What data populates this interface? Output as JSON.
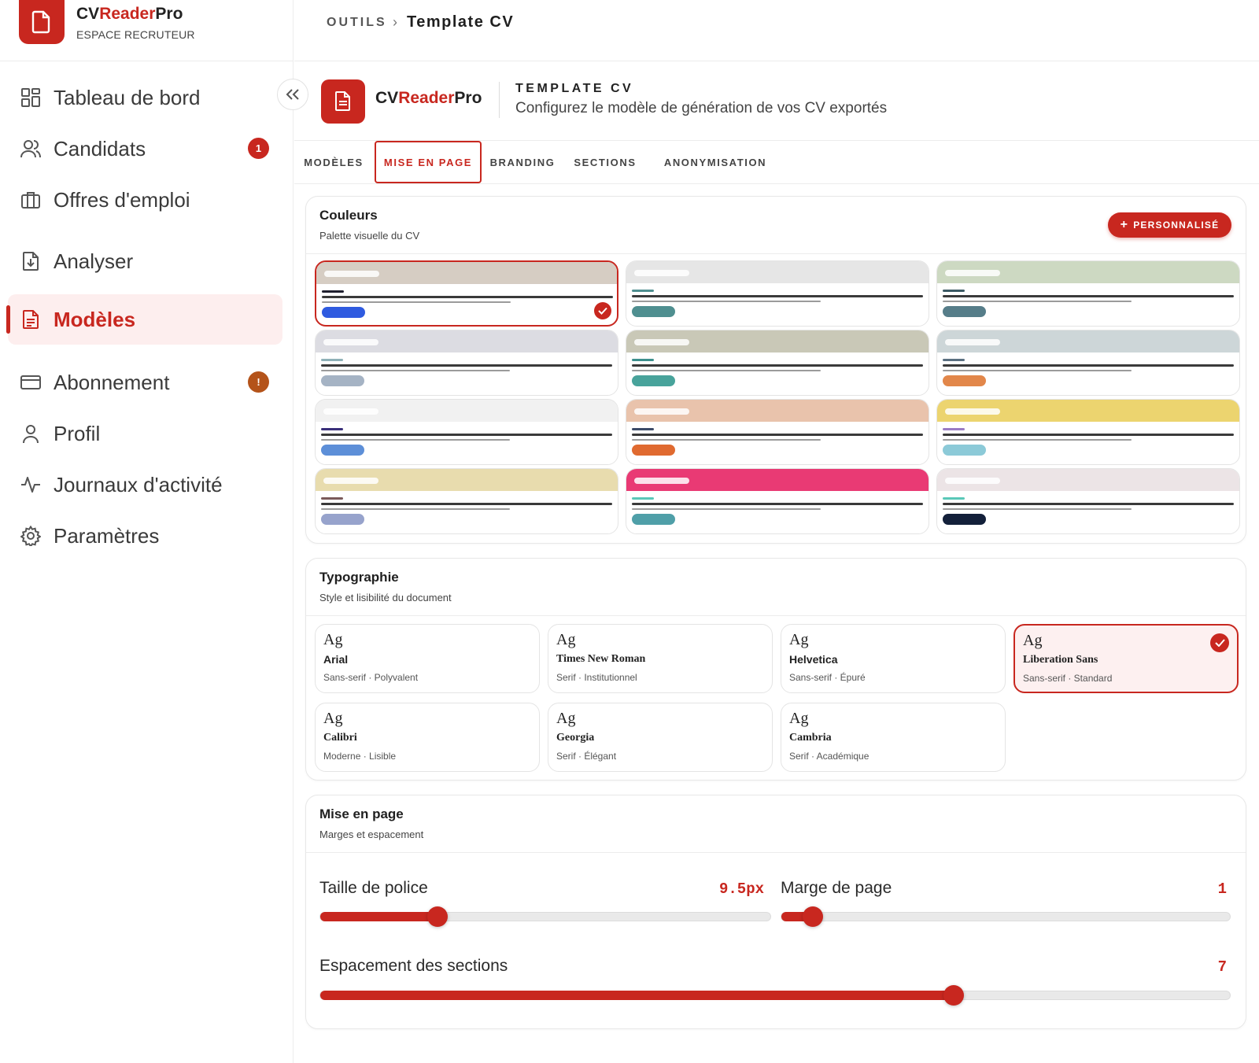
{
  "sidebar": {
    "brand": {
      "name_part1": "CV",
      "name_part2": "Reader",
      "name_part3": "Pro",
      "subtitle": "ESPACE RECRUTEUR",
      "logo_icon": "document-icon"
    },
    "collapse_icon": "double-chevron-left-icon",
    "items": [
      {
        "label": "Tableau de bord",
        "icon": "dashboard-grid-icon",
        "active": false
      },
      {
        "label": "Candidats",
        "icon": "users-icon",
        "active": false,
        "badge": "1"
      },
      {
        "label": "Offres d'emploi",
        "icon": "briefcase-icon",
        "active": false
      },
      {
        "label": "Analyser",
        "icon": "file-download-icon",
        "active": false
      },
      {
        "label": "Modèles",
        "icon": "file-text-icon",
        "active": true
      },
      {
        "label": "Abonnement",
        "icon": "credit-card-icon",
        "active": false,
        "badge": "!"
      },
      {
        "label": "Profil",
        "icon": "user-icon",
        "active": false
      },
      {
        "label": "Journaux d'activité",
        "icon": "activity-icon",
        "active": false
      },
      {
        "label": "Paramètres",
        "icon": "gear-icon",
        "active": false
      }
    ]
  },
  "breadcrumb": {
    "root": "OUTILS",
    "separator": "›",
    "current": "Template CV"
  },
  "page_header": {
    "brand_part1": "CV",
    "brand_part2": "Reader",
    "brand_part3": "Pro",
    "title": "TEMPLATE CV",
    "subtitle": "Configurez le modèle de génération de vos CV exportés"
  },
  "tabs": [
    {
      "label": "MODÈLES",
      "active": false
    },
    {
      "label": "MISE EN PAGE",
      "active": true
    },
    {
      "label": "BRANDING",
      "active": false
    },
    {
      "label": "SECTIONS",
      "active": false
    },
    {
      "label": "ANONYMISATION",
      "active": false
    }
  ],
  "colors_section": {
    "title": "Couleurs",
    "subtitle": "Palette visuelle du CV",
    "custom_button": "PERSONNALISÉ",
    "palettes": [
      {
        "band": "#d6cdc3",
        "accent": "#1f1f2e",
        "chip": "#2f5be0",
        "selected": true
      },
      {
        "band": "#e6e6e6",
        "accent": "#4f8f90",
        "chip": "#4f8f90",
        "selected": false
      },
      {
        "band": "#cdd9c2",
        "accent": "#3c5a64",
        "chip": "#567d89",
        "selected": false
      },
      {
        "band": "#dcdce2",
        "accent": "#8fb1b8",
        "chip": "#a5b3c4",
        "selected": false
      },
      {
        "band": "#c9c8b7",
        "accent": "#3c8f8c",
        "chip": "#48a39b",
        "selected": false
      },
      {
        "band": "#cdd6d8",
        "accent": "#5a6f80",
        "chip": "#e2874a",
        "selected": false
      },
      {
        "band": "#f1f1f1",
        "accent": "#3a2f7a",
        "chip": "#5d8fd8",
        "selected": false
      },
      {
        "band": "#e9c3ac",
        "accent": "#3b4a68",
        "chip": "#e06a30",
        "selected": false
      },
      {
        "band": "#ecd46f",
        "accent": "#9a7bc4",
        "chip": "#8ccad8",
        "selected": false
      },
      {
        "band": "#e8dcae",
        "accent": "#7a5a5a",
        "chip": "#97a3cc",
        "selected": false
      },
      {
        "band": "#e93a74",
        "accent": "#5ac8b8",
        "chip": "#4f9fa8",
        "selected": false
      },
      {
        "band": "#ece4e6",
        "accent": "#5ac8b8",
        "chip": "#13203a",
        "selected": false
      }
    ]
  },
  "typography_section": {
    "title": "Typographie",
    "subtitle": "Style et lisibilité du document",
    "fonts": [
      {
        "sample": "Ag",
        "name": "Arial",
        "desc": "Sans-serif · Polyvalent",
        "selected": false
      },
      {
        "sample": "Ag",
        "name": "Times New Roman",
        "desc": "Serif · Institutionnel",
        "selected": false
      },
      {
        "sample": "Ag",
        "name": "Helvetica",
        "desc": "Sans-serif · Épuré",
        "selected": false
      },
      {
        "sample": "Ag",
        "name": "Liberation Sans",
        "desc": "Sans-serif · Standard",
        "selected": true
      },
      {
        "sample": "Ag",
        "name": "Calibri",
        "desc": "Moderne · Lisible",
        "selected": false
      },
      {
        "sample": "Ag",
        "name": "Georgia",
        "desc": "Serif · Élégant",
        "selected": false
      },
      {
        "sample": "Ag",
        "name": "Cambria",
        "desc": "Serif · Académique",
        "selected": false
      }
    ]
  },
  "layout_section": {
    "title": "Mise en page",
    "subtitle": "Marges et espacement",
    "sliders": [
      {
        "label": "Taille de police",
        "value": "9.5px",
        "fraction": 0.26
      },
      {
        "label": "Marge de page",
        "value": "1",
        "fraction": 0.07
      },
      {
        "label": "Espacement des sections",
        "value": "7",
        "fraction": 0.696
      }
    ]
  },
  "theme": {
    "accent": "#c8271f",
    "accent_soft": "#fdeeee"
  }
}
